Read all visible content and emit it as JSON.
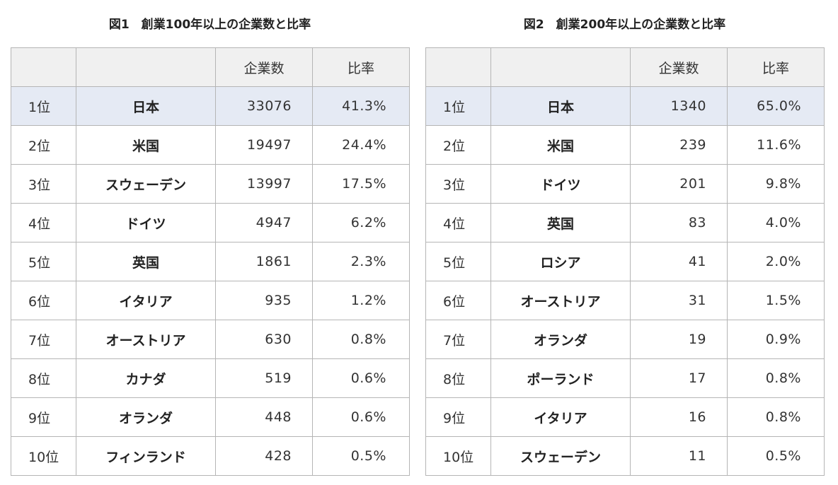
{
  "figure1": {
    "title": "図1　創業100年以上の企業数と比率",
    "headers": [
      "",
      "",
      "企業数",
      "比率"
    ],
    "rows": [
      {
        "rank": "1位",
        "country": "日本",
        "count": "33076",
        "ratio": "41.3%"
      },
      {
        "rank": "2位",
        "country": "米国",
        "count": "19497",
        "ratio": "24.4%"
      },
      {
        "rank": "3位",
        "country": "スウェーデン",
        "count": "13997",
        "ratio": "17.5%"
      },
      {
        "rank": "4位",
        "country": "ドイツ",
        "count": "4947",
        "ratio": "6.2%"
      },
      {
        "rank": "5位",
        "country": "英国",
        "count": "1861",
        "ratio": "2.3%"
      },
      {
        "rank": "6位",
        "country": "イタリア",
        "count": "935",
        "ratio": "1.2%"
      },
      {
        "rank": "7位",
        "country": "オーストリア",
        "count": "630",
        "ratio": "0.8%"
      },
      {
        "rank": "8位",
        "country": "カナダ",
        "count": "519",
        "ratio": "0.6%"
      },
      {
        "rank": "9位",
        "country": "オランダ",
        "count": "448",
        "ratio": "0.6%"
      },
      {
        "rank": "10位",
        "country": "フィンランド",
        "count": "428",
        "ratio": "0.5%"
      }
    ]
  },
  "figure2": {
    "title": "図2　創業200年以上の企業数と比率",
    "headers": [
      "",
      "",
      "企業数",
      "比率"
    ],
    "rows": [
      {
        "rank": "1位",
        "country": "日本",
        "count": "1340",
        "ratio": "65.0%"
      },
      {
        "rank": "2位",
        "country": "米国",
        "count": "239",
        "ratio": "11.6%"
      },
      {
        "rank": "3位",
        "country": "ドイツ",
        "count": "201",
        "ratio": "9.8%"
      },
      {
        "rank": "4位",
        "country": "英国",
        "count": "83",
        "ratio": "4.0%"
      },
      {
        "rank": "5位",
        "country": "ロシア",
        "count": "41",
        "ratio": "2.0%"
      },
      {
        "rank": "6位",
        "country": "オーストリア",
        "count": "31",
        "ratio": "1.5%"
      },
      {
        "rank": "7位",
        "country": "オランダ",
        "count": "19",
        "ratio": "0.9%"
      },
      {
        "rank": "8位",
        "country": "ポーランド",
        "count": "17",
        "ratio": "0.8%"
      },
      {
        "rank": "9位",
        "country": "イタリア",
        "count": "16",
        "ratio": "0.8%"
      },
      {
        "rank": "10位",
        "country": "スウェーデン",
        "count": "11",
        "ratio": "0.5%"
      }
    ]
  },
  "colors": {
    "header_bg": "#f0f0f0",
    "highlight_row_bg": "#e5eaf4",
    "border": "#b5b5b5",
    "text": "#333333"
  }
}
